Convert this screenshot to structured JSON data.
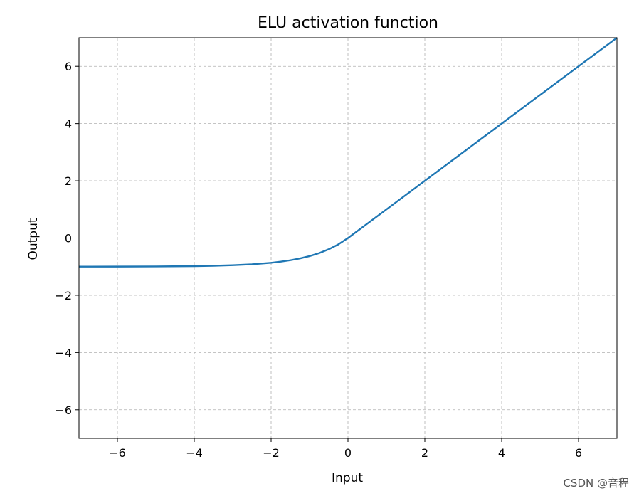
{
  "chart_data": {
    "type": "line",
    "title": "ELU activation function",
    "xlabel": "Input",
    "ylabel": "Output",
    "xlim": [
      -7,
      7
    ],
    "ylim": [
      -7,
      7
    ],
    "xticks": [
      -6,
      -4,
      -2,
      0,
      2,
      4,
      6
    ],
    "yticks": [
      -6,
      -4,
      -2,
      0,
      2,
      4,
      6
    ],
    "grid": true,
    "grid_style": "dashed",
    "series": [
      {
        "color": "#1f77b4",
        "x": [
          -7,
          -6,
          -5,
          -4,
          -3.5,
          -3,
          -2.5,
          -2,
          -1.75,
          -1.5,
          -1.25,
          -1,
          -0.75,
          -0.5,
          -0.25,
          0,
          1,
          2,
          3,
          4,
          5,
          6,
          7
        ],
        "y": [
          -0.999,
          -0.998,
          -0.993,
          -0.982,
          -0.97,
          -0.95,
          -0.918,
          -0.865,
          -0.826,
          -0.777,
          -0.713,
          -0.632,
          -0.528,
          -0.393,
          -0.221,
          0,
          1,
          2,
          3,
          4,
          5,
          6,
          7
        ]
      }
    ]
  },
  "watermark": "CSDN @音程"
}
